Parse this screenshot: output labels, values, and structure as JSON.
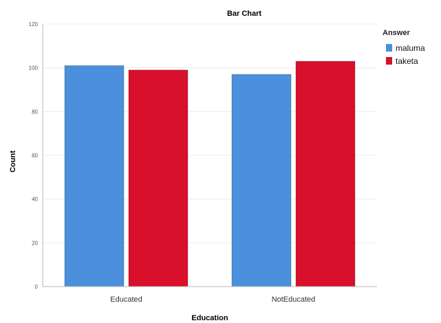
{
  "chart_data": {
    "type": "bar",
    "title": "Bar Chart",
    "xlabel": "Education",
    "ylabel": "Count",
    "categories": [
      "Educated",
      "NotEducated"
    ],
    "series": [
      {
        "name": "maluma",
        "color": "#4a90dc",
        "values": [
          101,
          97
        ]
      },
      {
        "name": "taketa",
        "color": "#d8102b",
        "values": [
          99,
          103
        ]
      }
    ],
    "ylim": [
      0,
      120
    ],
    "yticks": [
      0,
      20,
      40,
      60,
      80,
      100,
      120
    ],
    "legend": {
      "title": "Answer",
      "position": "right"
    },
    "grid": true
  }
}
